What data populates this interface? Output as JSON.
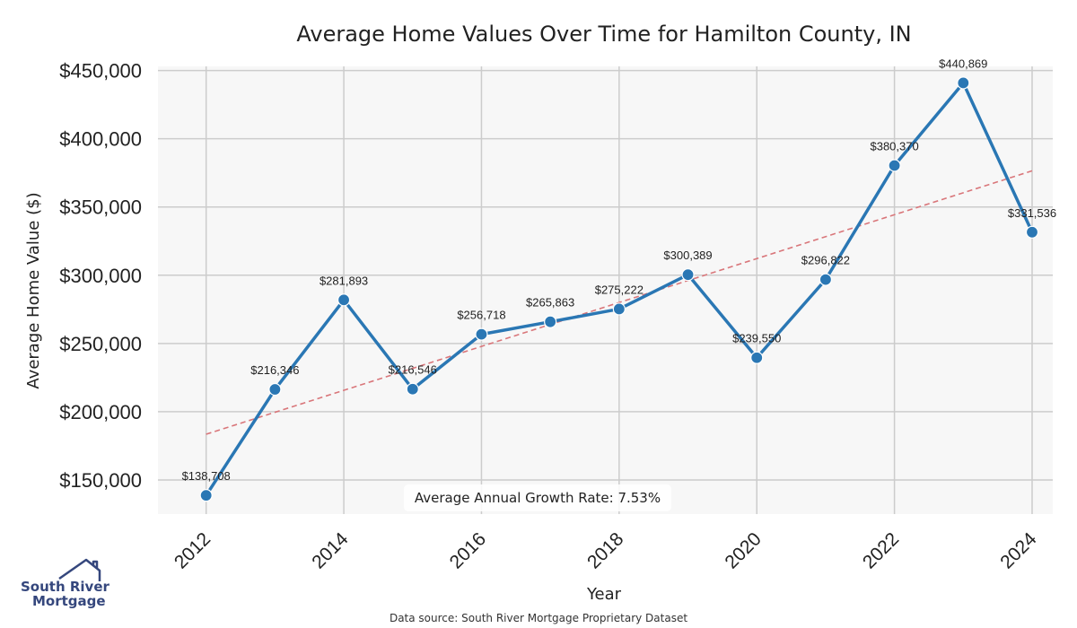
{
  "chart_data": {
    "type": "line",
    "title": "Average Home Values Over Time for Hamilton County, IN",
    "xlabel": "Year",
    "ylabel": "Average Home Value ($)",
    "x": [
      2012,
      2013,
      2014,
      2015,
      2016,
      2017,
      2018,
      2019,
      2020,
      2021,
      2022,
      2023,
      2024
    ],
    "x_ticks": [
      "2012",
      "2014",
      "2016",
      "2018",
      "2020",
      "2022",
      "2024"
    ],
    "y_ticks": [
      "$150,000",
      "$200,000",
      "$250,000",
      "$300,000",
      "$350,000",
      "$400,000",
      "$450,000"
    ],
    "ylim": [
      125000,
      453000
    ],
    "xlim": [
      2011.3,
      2024.3
    ],
    "series": [
      {
        "name": "Average Home Value",
        "color": "#2a77b4",
        "values": [
          138708,
          216346,
          281893,
          216546,
          256718,
          265863,
          275222,
          300389,
          239550,
          296822,
          380370,
          440869,
          331536
        ],
        "labels": [
          "$138,708",
          "$216,346",
          "$281,893",
          "$216,546",
          "$256,718",
          "$265,863",
          "$275,222",
          "$300,389",
          "$239,550",
          "$296,822",
          "$380,370",
          "$440,869",
          "$331,536"
        ]
      }
    ],
    "trendline": {
      "color": "#d9767a",
      "start": [
        2012,
        183500
      ],
      "end": [
        2024,
        376500
      ]
    },
    "annotation": "Average Annual Growth Rate: 7.53%",
    "grid": true
  },
  "footer": {
    "source": "Data source: South River Mortgage Proprietary Dataset"
  },
  "logo": {
    "line1": "South River",
    "line2": "Mortgage"
  }
}
